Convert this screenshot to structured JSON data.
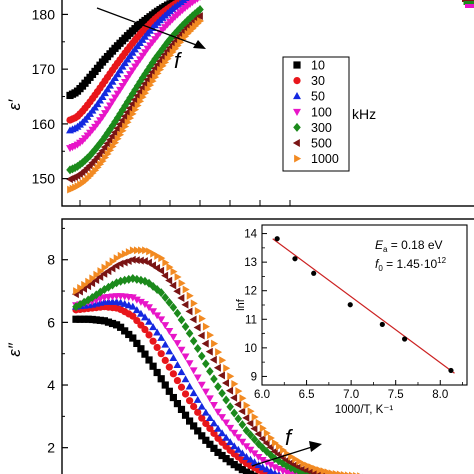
{
  "chart_data": [
    {
      "type": "scatter",
      "title": "",
      "xlabel": "",
      "ylabel": "ε′",
      "ylim": [
        145,
        183
      ],
      "yticks": [
        150,
        160,
        170,
        180
      ],
      "grid": false,
      "legend": {
        "placement": "right",
        "entries": [
          "10",
          "30",
          "50",
          "100",
          "300",
          "500",
          "1000"
        ],
        "unit": "kHz"
      },
      "annotation": "f",
      "series": [
        {
          "name": "10",
          "color": "#000000",
          "marker": "square",
          "x": [
            0.0,
            0.05,
            0.1,
            0.15,
            0.2,
            0.25,
            0.3,
            0.35,
            0.4,
            0.45,
            0.5,
            0.55,
            0.6,
            0.65,
            0.7,
            0.75,
            0.8,
            0.85,
            0.9,
            0.95,
            1.0
          ],
          "y": [
            165.2,
            165.8,
            167.0,
            168.4,
            169.8,
            171.3,
            172.6,
            173.9,
            175.1,
            176.3,
            177.4,
            178.4,
            179.3,
            180.2,
            181.0,
            181.7,
            182.3,
            182.9,
            183.4,
            183.9,
            184.4
          ]
        },
        {
          "name": "30",
          "color": "#e8161b",
          "marker": "circle",
          "x": [
            0.0,
            0.05,
            0.1,
            0.15,
            0.2,
            0.25,
            0.3,
            0.35,
            0.4,
            0.45,
            0.5,
            0.55,
            0.6,
            0.65,
            0.7,
            0.75,
            0.8,
            0.85,
            0.9,
            0.95,
            1.0
          ],
          "y": [
            160.7,
            161.2,
            162.4,
            163.9,
            165.5,
            167.2,
            168.9,
            170.6,
            172.2,
            173.8,
            175.3,
            176.7,
            177.9,
            179.1,
            180.1,
            181.0,
            181.8,
            182.5,
            183.1,
            183.6,
            184.0
          ]
        },
        {
          "name": "50",
          "color": "#1428e0",
          "marker": "triangle-up",
          "x": [
            0.0,
            0.05,
            0.1,
            0.15,
            0.2,
            0.25,
            0.3,
            0.35,
            0.4,
            0.45,
            0.5,
            0.55,
            0.6,
            0.65,
            0.7,
            0.75,
            0.8,
            0.85,
            0.9,
            0.95,
            1.0
          ],
          "y": [
            158.8,
            159.3,
            160.3,
            161.7,
            163.2,
            164.9,
            166.7,
            168.5,
            170.3,
            172.0,
            173.6,
            175.1,
            176.6,
            177.9,
            179.1,
            180.2,
            181.2,
            182.0,
            182.8,
            183.5,
            184.0
          ]
        },
        {
          "name": "100",
          "color": "#e815c8",
          "marker": "triangle-down",
          "x": [
            0.0,
            0.05,
            0.1,
            0.15,
            0.2,
            0.25,
            0.3,
            0.35,
            0.4,
            0.45,
            0.5,
            0.55,
            0.6,
            0.65,
            0.7,
            0.75,
            0.8,
            0.85,
            0.9,
            0.95,
            1.0
          ],
          "y": [
            155.6,
            156.1,
            157.0,
            158.3,
            159.7,
            161.3,
            163.1,
            165.0,
            166.8,
            168.7,
            170.5,
            172.2,
            173.9,
            175.4,
            176.9,
            178.2,
            179.4,
            180.5,
            181.5,
            182.4,
            183.2
          ]
        },
        {
          "name": "300",
          "color": "#1b8a1b",
          "marker": "diamond",
          "x": [
            0.0,
            0.05,
            0.1,
            0.15,
            0.2,
            0.25,
            0.3,
            0.35,
            0.4,
            0.45,
            0.5,
            0.55,
            0.6,
            0.65,
            0.7,
            0.75,
            0.8,
            0.85,
            0.9,
            0.95,
            1.0
          ],
          "y": [
            151.6,
            152.1,
            153.0,
            154.1,
            155.5,
            157.0,
            158.7,
            160.5,
            162.4,
            164.3,
            166.2,
            168.1,
            169.9,
            171.7,
            173.3,
            174.9,
            176.3,
            177.6,
            178.8,
            179.9,
            180.9
          ]
        },
        {
          "name": "500",
          "color": "#7a1414",
          "marker": "triangle-left",
          "x": [
            0.0,
            0.05,
            0.1,
            0.15,
            0.2,
            0.25,
            0.3,
            0.35,
            0.4,
            0.45,
            0.5,
            0.55,
            0.6,
            0.65,
            0.7,
            0.75,
            0.8,
            0.85,
            0.9,
            0.95,
            1.0
          ],
          "y": [
            149.9,
            150.4,
            151.2,
            152.3,
            153.6,
            155.1,
            156.8,
            158.6,
            160.5,
            162.4,
            164.4,
            166.3,
            168.2,
            170.0,
            171.7,
            173.3,
            174.8,
            176.2,
            177.5,
            178.6,
            179.7
          ]
        },
        {
          "name": "1000",
          "color": "#f28a22",
          "marker": "triangle-right",
          "x": [
            0.0,
            0.05,
            0.1,
            0.15,
            0.2,
            0.25,
            0.3,
            0.35,
            0.4,
            0.45,
            0.5,
            0.55,
            0.6,
            0.65,
            0.7,
            0.75,
            0.8,
            0.85,
            0.9,
            0.95,
            1.0
          ],
          "y": [
            148.0,
            148.5,
            149.3,
            150.4,
            151.7,
            153.2,
            154.9,
            156.7,
            158.6,
            160.6,
            162.6,
            164.6,
            166.5,
            168.4,
            170.2,
            171.9,
            173.5,
            175.0,
            176.4,
            177.6,
            178.8
          ]
        }
      ]
    },
    {
      "type": "scatter",
      "title": "",
      "xlabel": "",
      "ylabel": "ε″",
      "ylim": [
        1.0,
        9.3
      ],
      "yticks": [
        2,
        4,
        6,
        8
      ],
      "grid": false,
      "annotation": "f",
      "series": [
        {
          "name": "10",
          "color": "#000000",
          "x": [
            0.0,
            0.05,
            0.1,
            0.15,
            0.2,
            0.25,
            0.3,
            0.35,
            0.4,
            0.45,
            0.5,
            0.55,
            0.6,
            0.65,
            0.7,
            0.75,
            0.8,
            0.85,
            0.9,
            0.95,
            1.0
          ],
          "y": [
            6.1,
            6.1,
            6.05,
            5.9,
            5.5,
            4.9,
            4.2,
            3.5,
            2.85,
            2.3,
            1.85,
            1.5,
            1.22,
            1.0,
            0.85,
            0.75,
            0.7,
            0.68,
            0.67,
            0.66,
            0.66
          ]
        },
        {
          "name": "30",
          "color": "#e8161b",
          "x": [
            0.0,
            0.05,
            0.1,
            0.15,
            0.2,
            0.25,
            0.3,
            0.35,
            0.4,
            0.45,
            0.5,
            0.55,
            0.6,
            0.65,
            0.7,
            0.75,
            0.8,
            0.85,
            0.9,
            0.95,
            1.0
          ],
          "y": [
            6.4,
            6.45,
            6.5,
            6.45,
            6.2,
            5.7,
            5.0,
            4.25,
            3.5,
            2.85,
            2.3,
            1.85,
            1.5,
            1.25,
            1.05,
            0.92,
            0.85,
            0.8,
            0.78,
            0.77,
            0.76
          ]
        },
        {
          "name": "50",
          "color": "#1428e0",
          "x": [
            0.0,
            0.05,
            0.1,
            0.15,
            0.2,
            0.25,
            0.3,
            0.35,
            0.4,
            0.45,
            0.5,
            0.55,
            0.6,
            0.65,
            0.7,
            0.75,
            0.8,
            0.85,
            0.9,
            0.95,
            1.0
          ],
          "y": [
            6.5,
            6.55,
            6.65,
            6.65,
            6.5,
            6.1,
            5.5,
            4.75,
            3.95,
            3.2,
            2.6,
            2.1,
            1.7,
            1.4,
            1.18,
            1.02,
            0.93,
            0.88,
            0.85,
            0.84,
            0.83
          ]
        },
        {
          "name": "100",
          "color": "#e815c8",
          "x": [
            0.0,
            0.05,
            0.1,
            0.15,
            0.2,
            0.25,
            0.3,
            0.35,
            0.4,
            0.45,
            0.5,
            0.55,
            0.6,
            0.65,
            0.7,
            0.75,
            0.8,
            0.85,
            0.9,
            0.95,
            1.0
          ],
          "y": [
            6.55,
            6.65,
            6.8,
            6.85,
            6.8,
            6.55,
            6.1,
            5.45,
            4.7,
            3.9,
            3.15,
            2.55,
            2.05,
            1.65,
            1.38,
            1.18,
            1.05,
            0.98,
            0.94,
            0.92,
            0.91
          ]
        },
        {
          "name": "300",
          "color": "#1b8a1b",
          "x": [
            0.0,
            0.05,
            0.1,
            0.15,
            0.2,
            0.25,
            0.3,
            0.35,
            0.4,
            0.45,
            0.5,
            0.55,
            0.6,
            0.65,
            0.7,
            0.75,
            0.8,
            0.85,
            0.9,
            0.95,
            1.0
          ],
          "y": [
            6.5,
            6.75,
            7.05,
            7.3,
            7.4,
            7.3,
            6.95,
            6.4,
            5.65,
            4.8,
            3.95,
            3.2,
            2.55,
            2.05,
            1.65,
            1.38,
            1.2,
            1.08,
            1.02,
            0.99,
            0.97
          ]
        },
        {
          "name": "500",
          "color": "#7a1414",
          "x": [
            0.0,
            0.05,
            0.1,
            0.15,
            0.2,
            0.25,
            0.3,
            0.35,
            0.4,
            0.45,
            0.5,
            0.55,
            0.6,
            0.65,
            0.7,
            0.75,
            0.8,
            0.85,
            0.9,
            0.95,
            1.0
          ],
          "y": [
            6.9,
            7.2,
            7.55,
            7.85,
            8.0,
            7.95,
            7.65,
            7.1,
            6.35,
            5.45,
            4.55,
            3.7,
            2.95,
            2.35,
            1.88,
            1.55,
            1.32,
            1.18,
            1.1,
            1.06,
            1.04
          ]
        },
        {
          "name": "1000",
          "color": "#f28a22",
          "x": [
            0.0,
            0.05,
            0.1,
            0.15,
            0.2,
            0.25,
            0.3,
            0.35,
            0.4,
            0.45,
            0.5,
            0.55,
            0.6,
            0.65,
            0.7,
            0.75,
            0.8,
            0.85,
            0.9,
            0.95,
            1.0
          ],
          "y": [
            7.0,
            7.35,
            7.75,
            8.1,
            8.3,
            8.3,
            8.05,
            7.55,
            6.85,
            6.0,
            5.05,
            4.15,
            3.35,
            2.7,
            2.15,
            1.75,
            1.48,
            1.3,
            1.18,
            1.12,
            1.09
          ]
        }
      ]
    },
    {
      "type": "scatter",
      "title": "",
      "xlabel": "1000/T, K⁻¹",
      "ylabel": "lnf",
      "xlim": [
        6.0,
        8.3
      ],
      "ylim": [
        8.7,
        14.3
      ],
      "xticks": [
        "6.0",
        "6.5",
        "7.0",
        "7.5",
        "8.0"
      ],
      "yticks": [
        "9",
        "10",
        "11",
        "12",
        "13",
        "14"
      ],
      "grid": false,
      "annotations": {
        "ea_symbol": "E",
        "ea_sub": "a",
        "ea_value": " = 0.18 eV",
        "f0_symbol": "f",
        "f0_sub": "0",
        "f0_value": " = 1.45·10",
        "f0_exp": "12"
      },
      "points": {
        "color": "#000000",
        "x": [
          6.17,
          6.37,
          6.58,
          6.99,
          7.35,
          7.6,
          8.12
        ],
        "y": [
          13.82,
          13.12,
          12.61,
          11.51,
          10.82,
          10.31,
          9.21
        ]
      },
      "fit": {
        "color": "#cc2222",
        "x": [
          6.12,
          8.16
        ],
        "y": [
          13.82,
          9.11
        ]
      }
    }
  ]
}
